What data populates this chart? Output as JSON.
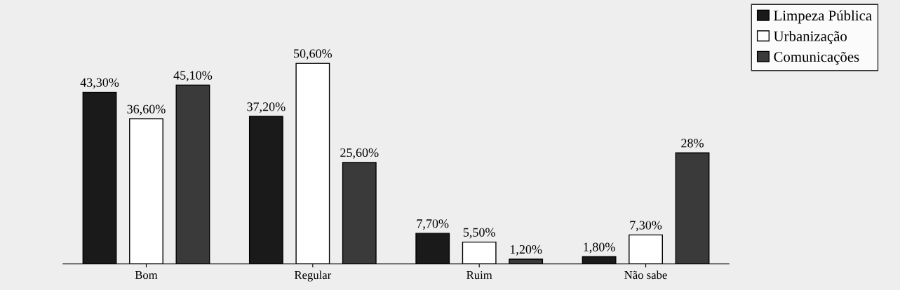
{
  "chart_data": {
    "type": "bar",
    "categories": [
      "Bom",
      "Regular",
      "Ruim",
      "Não sabe"
    ],
    "series": [
      {
        "name": "Limpeza Pública",
        "color": "#1a1a1a",
        "values": [
          43.3,
          37.2,
          7.7,
          1.8
        ],
        "value_labels": [
          "43,30%",
          "37,20%",
          "7,70%",
          "1,80%"
        ]
      },
      {
        "name": "Urbanização",
        "color": "#ffffff",
        "values": [
          36.6,
          50.6,
          5.5,
          7.3
        ],
        "value_labels": [
          "36,60%",
          "50,60%",
          "5,50%",
          "7,30%"
        ]
      },
      {
        "name": "Comunicações",
        "color": "#3a3a3a",
        "values": [
          45.1,
          25.6,
          1.2,
          28
        ],
        "value_labels": [
          "45,10%",
          "25,60%",
          "1,20%",
          "28%"
        ]
      }
    ],
    "legend": "top right",
    "grid": false
  }
}
